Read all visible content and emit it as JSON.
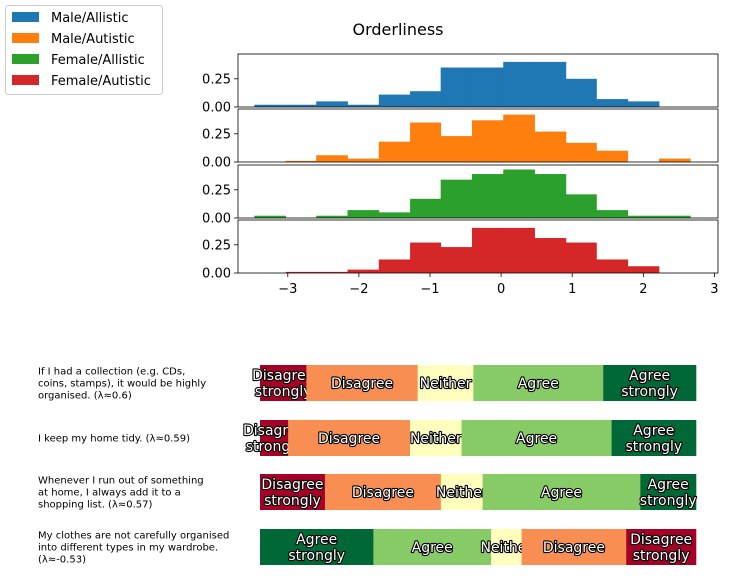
{
  "chart_data": [
    {
      "type": "bar",
      "subtype": "histogram",
      "title": "Orderliness",
      "xlim": [
        -3.7,
        3.05
      ],
      "xticks": [
        "−3",
        "−2",
        "−1",
        "0",
        "1",
        "2",
        "3"
      ],
      "yticks": [
        "0.00",
        "0.25"
      ],
      "ylim": [
        0,
        0.47
      ],
      "bin_edges": [
        -3.47,
        -3.03,
        -2.6,
        -2.16,
        -1.72,
        -1.28,
        -0.85,
        -0.41,
        0.03,
        0.47,
        0.91,
        1.34,
        1.78,
        2.22,
        2.66
      ],
      "series": [
        {
          "name": "Male/Allistic",
          "color": "#1f77b4",
          "values": [
            0.02,
            0.02,
            0.05,
            0.02,
            0.11,
            0.14,
            0.35,
            0.35,
            0.4,
            0.4,
            0.25,
            0.07,
            0.05,
            0.0
          ]
        },
        {
          "name": "Male/Autistic",
          "color": "#ff7f0e",
          "values": [
            0.0,
            0.01,
            0.06,
            0.03,
            0.18,
            0.35,
            0.23,
            0.37,
            0.42,
            0.27,
            0.17,
            0.1,
            0.0,
            0.03
          ]
        },
        {
          "name": "Female/Allistic",
          "color": "#2ca02c",
          "values": [
            0.02,
            0.0,
            0.02,
            0.07,
            0.05,
            0.17,
            0.34,
            0.39,
            0.43,
            0.39,
            0.21,
            0.07,
            0.02,
            0.02
          ]
        },
        {
          "name": "Female/Autistic",
          "color": "#d62728",
          "values": [
            0.0,
            0.01,
            0.01,
            0.03,
            0.12,
            0.27,
            0.23,
            0.4,
            0.4,
            0.31,
            0.27,
            0.12,
            0.06,
            0.0
          ]
        }
      ],
      "legend": "top-left, outside"
    },
    {
      "type": "bar",
      "subtype": "stacked-horizontal-likert",
      "categories": [
        "Disagree strongly",
        "Disagree",
        "Neither",
        "Agree",
        "Agree strongly"
      ],
      "colors": {
        "Disagree strongly": "#a50026",
        "Disagree": "#f98e52",
        "Neither": "#fefebd",
        "Agree": "#86cb66",
        "Agree strongly": "#006837"
      },
      "rows": [
        {
          "question": [
            "If I had a collection (e.g. CDs,",
            "coins, stamps), it would be highly",
            "organised. (λ≈0.6)"
          ],
          "segments": [
            {
              "label": [
                "Disagree",
                "strongly"
              ],
              "category": "Disagree strongly",
              "value": 0.1
            },
            {
              "label": [
                "Disagree"
              ],
              "category": "Disagree",
              "value": 0.24
            },
            {
              "label": [
                "Neither"
              ],
              "category": "Neither",
              "value": 0.12
            },
            {
              "label": [
                "Agree"
              ],
              "category": "Agree",
              "value": 0.28
            },
            {
              "label": [
                "Agree",
                "strongly"
              ],
              "category": "Agree strongly",
              "value": 0.2
            }
          ]
        },
        {
          "question": [
            "I keep my home tidy. (λ≈0.59)"
          ],
          "segments": [
            {
              "label": [
                "Disagree",
                "strongly"
              ],
              "category": "Disagree strongly",
              "value": 0.06
            },
            {
              "label": [
                "Disagree"
              ],
              "category": "Disagree",
              "value": 0.26
            },
            {
              "label": [
                "Neither"
              ],
              "category": "Neither",
              "value": 0.11
            },
            {
              "label": [
                "Agree"
              ],
              "category": "Agree",
              "value": 0.32
            },
            {
              "label": [
                "Agree",
                "strongly"
              ],
              "category": "Agree strongly",
              "value": 0.18
            }
          ]
        },
        {
          "question": [
            "Whenever I run out of something",
            "at home, I always add it to a",
            "shopping list. (λ≈0.57)"
          ],
          "segments": [
            {
              "label": [
                "Disagree",
                "strongly"
              ],
              "category": "Disagree strongly",
              "value": 0.14
            },
            {
              "label": [
                "Disagree"
              ],
              "category": "Disagree",
              "value": 0.25
            },
            {
              "label": [
                "Neither"
              ],
              "category": "Neither",
              "value": 0.09
            },
            {
              "label": [
                "Agree"
              ],
              "category": "Agree",
              "value": 0.34
            },
            {
              "label": [
                "Agree",
                "strongly"
              ],
              "category": "Agree strongly",
              "value": 0.12
            }
          ]
        },
        {
          "question": [
            "My clothes are not carefully organised",
            "into different types in my wardrobe.",
            "(λ≈-0.53)"
          ],
          "segments": [
            {
              "label": [
                "Agree",
                "strongly"
              ],
              "category": "Agree strongly",
              "value": 0.26
            },
            {
              "label": [
                "Agree"
              ],
              "category": "Agree",
              "value": 0.27
            },
            {
              "label": [
                "Neither"
              ],
              "category": "Neither",
              "value": 0.07
            },
            {
              "label": [
                "Disagree"
              ],
              "category": "Disagree",
              "value": 0.24
            },
            {
              "label": [
                "Disagree",
                "strongly"
              ],
              "category": "Disagree strongly",
              "value": 0.16
            }
          ]
        }
      ]
    }
  ]
}
